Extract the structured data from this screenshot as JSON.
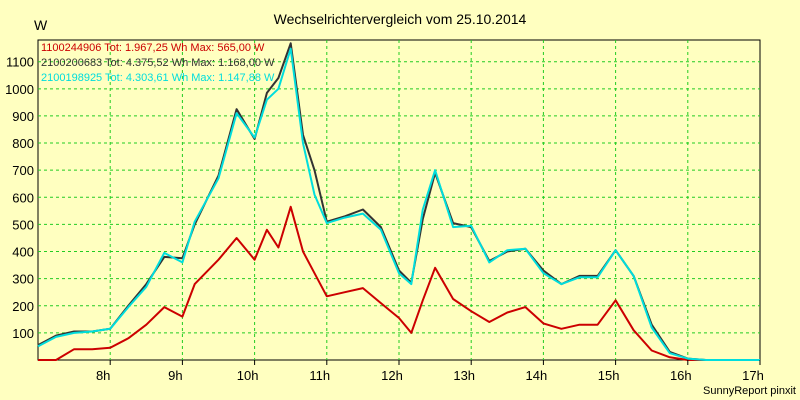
{
  "chart_data": {
    "type": "line",
    "title": "Wechselrichtervergleich vom 25.10.2014",
    "ylabel": "W",
    "credit": "SunnyReport pinxit",
    "xlim": [
      7.0,
      17.0
    ],
    "ylim": [
      0,
      1180
    ],
    "x_ticks": [
      {
        "value": 8,
        "label": "8h"
      },
      {
        "value": 9,
        "label": "9h"
      },
      {
        "value": 10,
        "label": "10h"
      },
      {
        "value": 11,
        "label": "11h"
      },
      {
        "value": 12,
        "label": "12h"
      },
      {
        "value": 13,
        "label": "13h"
      },
      {
        "value": 14,
        "label": "14h"
      },
      {
        "value": 15,
        "label": "15h"
      },
      {
        "value": 16,
        "label": "16h"
      },
      {
        "value": 17,
        "label": "17h"
      }
    ],
    "y_ticks": [
      100,
      200,
      300,
      400,
      500,
      600,
      700,
      800,
      900,
      1000,
      1100
    ],
    "x": [
      7.0,
      7.25,
      7.5,
      7.75,
      8.0,
      8.25,
      8.5,
      8.75,
      9.0,
      9.17,
      9.5,
      9.75,
      10.0,
      10.17,
      10.33,
      10.5,
      10.67,
      10.83,
      11.0,
      11.25,
      11.5,
      11.75,
      12.0,
      12.17,
      12.33,
      12.5,
      12.75,
      13.0,
      13.25,
      13.5,
      13.75,
      14.0,
      14.25,
      14.5,
      14.75,
      15.0,
      15.25,
      15.5,
      15.75,
      16.0,
      16.25,
      16.5,
      16.75,
      17.0
    ],
    "series": [
      {
        "name": "1100244906",
        "legend": "1100244906 Tot: 1.967,25 Wh Max: 565,00 W",
        "color": "#cc0000",
        "values": [
          0,
          0,
          40,
          40,
          45,
          80,
          130,
          195,
          160,
          280,
          370,
          450,
          370,
          480,
          415,
          565,
          400,
          320,
          235,
          250,
          265,
          210,
          155,
          100,
          220,
          340,
          225,
          180,
          140,
          175,
          195,
          135,
          115,
          130,
          130,
          220,
          110,
          35,
          10,
          0,
          0,
          0,
          0,
          0
        ]
      },
      {
        "name": "2100200683",
        "legend": "2100200683 Tot: 4.375,52 Wh Max: 1.168,00 W",
        "color": "#333333",
        "values": [
          55,
          90,
          105,
          105,
          115,
          200,
          280,
          380,
          375,
          500,
          680,
          925,
          815,
          985,
          1040,
          1168,
          830,
          700,
          510,
          530,
          555,
          490,
          330,
          285,
          520,
          690,
          505,
          490,
          365,
          400,
          410,
          330,
          280,
          310,
          310,
          405,
          310,
          130,
          30,
          5,
          0,
          0,
          0,
          0
        ]
      },
      {
        "name": "2100198925",
        "legend": "2100198925 Tot: 4.303,61 Wh Max: 1.147,88 W",
        "color": "#00dddd",
        "values": [
          50,
          85,
          100,
          105,
          115,
          195,
          270,
          395,
          360,
          510,
          670,
          910,
          820,
          960,
          1000,
          1148,
          800,
          610,
          505,
          525,
          540,
          480,
          320,
          280,
          555,
          700,
          490,
          495,
          360,
          405,
          410,
          320,
          280,
          305,
          305,
          405,
          310,
          120,
          25,
          5,
          0,
          0,
          0,
          0
        ]
      }
    ]
  }
}
